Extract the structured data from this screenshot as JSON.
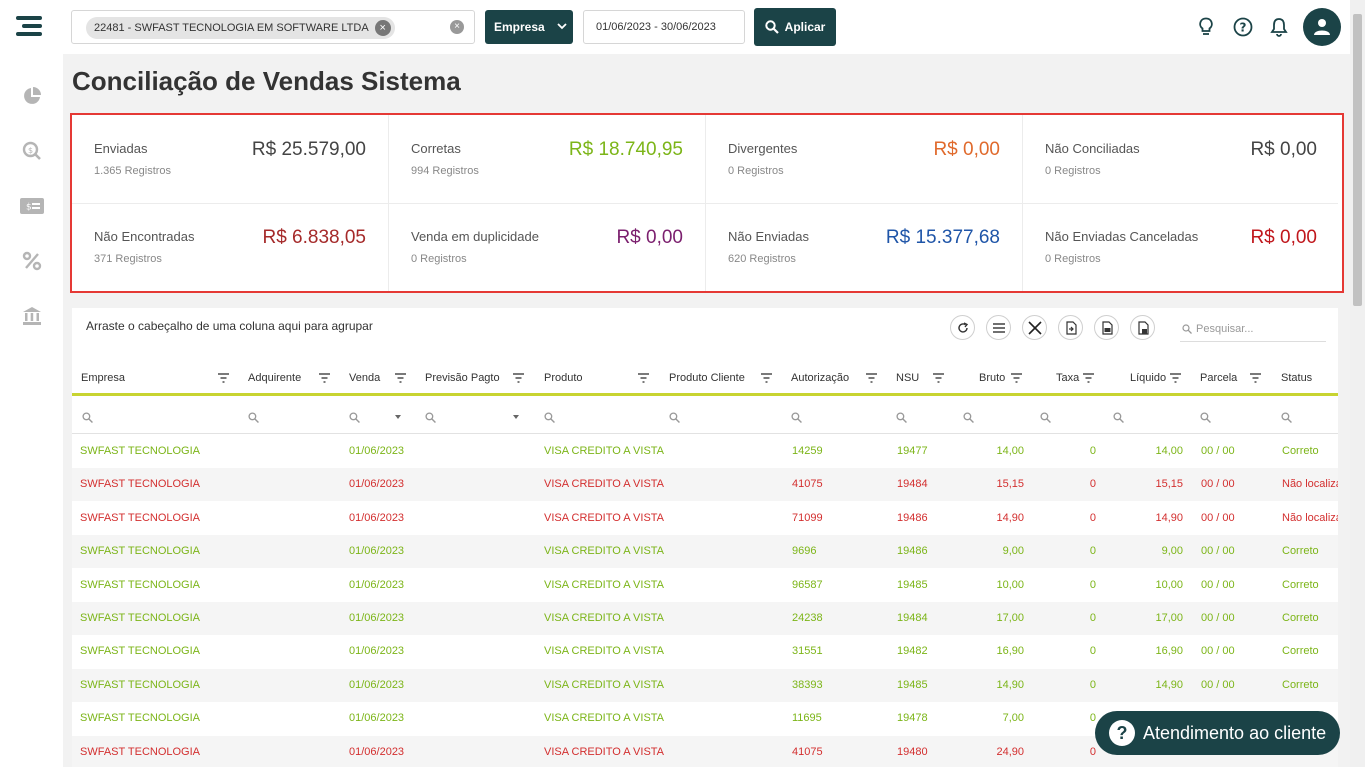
{
  "topbar": {
    "company_chip": "22481 - SWFAST TECNOLOGIA EM SOFTWARE LTDA",
    "empresa_label": "Empresa",
    "date_range": "01/06/2023 - 30/06/2023",
    "apply_label": "Aplicar",
    "icons": [
      "lightbulb-icon",
      "help-circle-icon",
      "bell-icon",
      "user-icon"
    ]
  },
  "sidebar": {
    "icons": [
      "pie-chart-icon",
      "search-money-icon",
      "payment-card-icon",
      "percent-icon",
      "bank-icon"
    ]
  },
  "page": {
    "title": "Conciliação de Vendas Sistema"
  },
  "summary": {
    "cards": [
      {
        "label": "Enviadas",
        "registros": "1.365 Registros",
        "value": "R$ 25.579,00",
        "color": "#444444"
      },
      {
        "label": "Corretas",
        "registros": "994 Registros",
        "value": "R$ 18.740,95",
        "color": "#7cb518"
      },
      {
        "label": "Divergentes",
        "registros": "0 Registros",
        "value": "R$ 0,00",
        "color": "#e06a2c"
      },
      {
        "label": "Não Conciliadas",
        "registros": "0 Registros",
        "value": "R$ 0,00",
        "color": "#444444"
      },
      {
        "label": "Não Encontradas",
        "registros": "371 Registros",
        "value": "R$ 6.838,05",
        "color": "#a52a2a"
      },
      {
        "label": "Venda em duplicidade",
        "registros": "0 Registros",
        "value": "R$ 0,00",
        "color": "#7b1f6e"
      },
      {
        "label": "Não Enviadas",
        "registros": "620 Registros",
        "value": "R$ 15.377,68",
        "color": "#1f55a8"
      },
      {
        "label": "Não Enviadas Canceladas",
        "registros": "0 Registros",
        "value": "R$ 0,00",
        "color": "#c0171c"
      }
    ]
  },
  "grid": {
    "group_hint": "Arraste o cabeçalho de uma coluna aqui para agrupar",
    "search_placeholder": "Pesquisar...",
    "toolbar_icons": [
      "refresh-icon",
      "columns-icon",
      "clear-filter-icon",
      "export-icon",
      "export-pdf-icon",
      "export-excel-icon"
    ],
    "columns": [
      "Empresa",
      "Adquirente",
      "Venda",
      "Previsão Pagto",
      "Produto",
      "Produto Cliente",
      "Autorização",
      "NSU",
      "Bruto",
      "Taxa",
      "Líquido",
      "Parcela",
      "Status"
    ],
    "rows": [
      {
        "empresa": "SWFAST TECNOLOGIA",
        "venda": "01/06/2023",
        "produto": "VISA CREDITO A VISTA",
        "autorizacao": "14259",
        "nsu": "19477",
        "bruto": "14,00",
        "taxa": "0",
        "liquido": "14,00",
        "parcela": "00 / 00",
        "status": "Correto",
        "ok": true
      },
      {
        "empresa": "SWFAST TECNOLOGIA",
        "venda": "01/06/2023",
        "produto": "VISA CREDITO A VISTA",
        "autorizacao": "41075",
        "nsu": "19484",
        "bruto": "15,15",
        "taxa": "0",
        "liquido": "15,15",
        "parcela": "00 / 00",
        "status": "Não localiza",
        "ok": false
      },
      {
        "empresa": "SWFAST TECNOLOGIA",
        "venda": "01/06/2023",
        "produto": "VISA CREDITO A VISTA",
        "autorizacao": "71099",
        "nsu": "19486",
        "bruto": "14,90",
        "taxa": "0",
        "liquido": "14,90",
        "parcela": "00 / 00",
        "status": "Não localiza",
        "ok": false
      },
      {
        "empresa": "SWFAST TECNOLOGIA",
        "venda": "01/06/2023",
        "produto": "VISA CREDITO A VISTA",
        "autorizacao": "9696",
        "nsu": "19486",
        "bruto": "9,00",
        "taxa": "0",
        "liquido": "9,00",
        "parcela": "00 / 00",
        "status": "Correto",
        "ok": true
      },
      {
        "empresa": "SWFAST TECNOLOGIA",
        "venda": "01/06/2023",
        "produto": "VISA CREDITO A VISTA",
        "autorizacao": "96587",
        "nsu": "19485",
        "bruto": "10,00",
        "taxa": "0",
        "liquido": "10,00",
        "parcela": "00 / 00",
        "status": "Correto",
        "ok": true
      },
      {
        "empresa": "SWFAST TECNOLOGIA",
        "venda": "01/06/2023",
        "produto": "VISA CREDITO A VISTA",
        "autorizacao": "24238",
        "nsu": "19484",
        "bruto": "17,00",
        "taxa": "0",
        "liquido": "17,00",
        "parcela": "00 / 00",
        "status": "Correto",
        "ok": true
      },
      {
        "empresa": "SWFAST TECNOLOGIA",
        "venda": "01/06/2023",
        "produto": "VISA CREDITO A VISTA",
        "autorizacao": "31551",
        "nsu": "19482",
        "bruto": "16,90",
        "taxa": "0",
        "liquido": "16,90",
        "parcela": "00 / 00",
        "status": "Correto",
        "ok": true
      },
      {
        "empresa": "SWFAST TECNOLOGIA",
        "venda": "01/06/2023",
        "produto": "VISA CREDITO A VISTA",
        "autorizacao": "38393",
        "nsu": "19485",
        "bruto": "14,90",
        "taxa": "0",
        "liquido": "14,90",
        "parcela": "00 / 00",
        "status": "Correto",
        "ok": true
      },
      {
        "empresa": "SWFAST TECNOLOGIA",
        "venda": "01/06/2023",
        "produto": "VISA CREDITO A VISTA",
        "autorizacao": "11695",
        "nsu": "19478",
        "bruto": "7,00",
        "taxa": "0",
        "liquido": "",
        "parcela": "",
        "status": "",
        "ok": true
      },
      {
        "empresa": "SWFAST TECNOLOGIA",
        "venda": "01/06/2023",
        "produto": "VISA CREDITO A VISTA",
        "autorizacao": "41075",
        "nsu": "19480",
        "bruto": "24,90",
        "taxa": "0",
        "liquido": "",
        "parcela": "",
        "status": "",
        "ok": false
      }
    ]
  },
  "help": {
    "label": "Atendimento ao cliente"
  }
}
